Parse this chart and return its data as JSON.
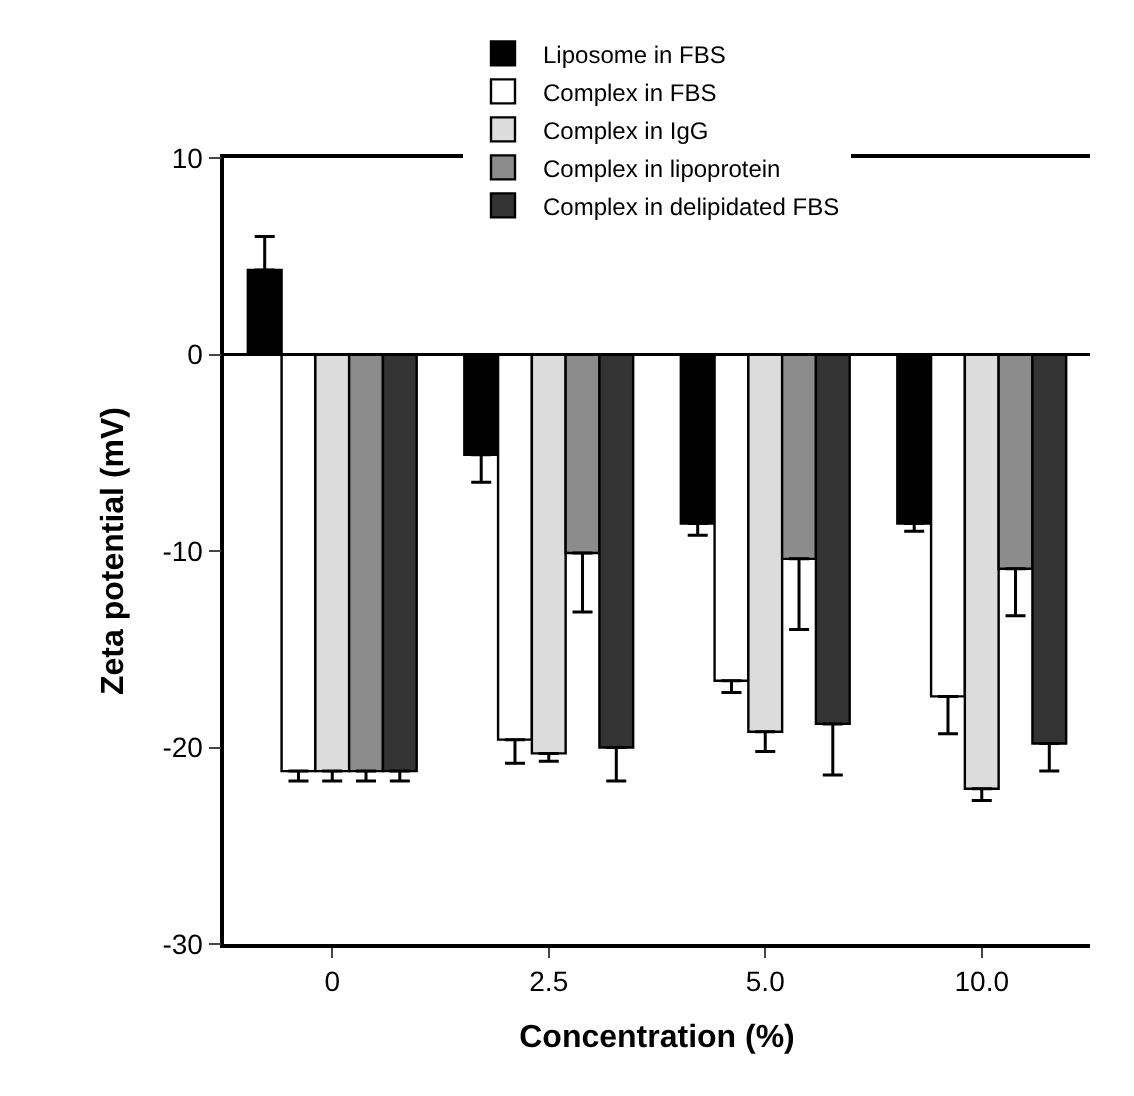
{
  "chart_data": {
    "type": "bar",
    "xlabel": "Concentration (%)",
    "ylabel": "Zeta potential (mV)",
    "categories": [
      "0",
      "2.5",
      "5.0",
      "10.0"
    ],
    "series": [
      {
        "name": "Liposome in FBS",
        "color": "#000000",
        "values": [
          4.3,
          -5.1,
          -8.6,
          -8.6
        ],
        "errors": [
          [
            4.3,
            6.0
          ],
          [
            -6.5,
            -5.1
          ],
          [
            -9.2,
            -8.6
          ],
          [
            -9.0,
            -8.6
          ]
        ]
      },
      {
        "name": "Complex in FBS",
        "color": "#ffffff",
        "values": [
          -21.2,
          -19.6,
          -16.6,
          -17.4
        ],
        "errors": [
          [
            -21.7,
            -21.2
          ],
          [
            -20.8,
            -19.6
          ],
          [
            -17.2,
            -16.6
          ],
          [
            -19.3,
            -17.4
          ]
        ]
      },
      {
        "name": "Complex in IgG",
        "color": "#dcdcdc",
        "values": [
          -21.2,
          -20.3,
          -19.2,
          -22.1
        ],
        "errors": [
          [
            -21.7,
            -21.2
          ],
          [
            -20.7,
            -20.3
          ],
          [
            -20.2,
            -19.2
          ],
          [
            -22.7,
            -22.1
          ]
        ]
      },
      {
        "name": "Complex in lipoprotein",
        "color": "#8c8c8c",
        "values": [
          -21.2,
          -10.1,
          -10.4,
          -10.9
        ],
        "errors": [
          [
            -21.7,
            -21.2
          ],
          [
            -13.1,
            -10.1
          ],
          [
            -14.0,
            -10.4
          ],
          [
            -13.3,
            -10.9
          ]
        ]
      },
      {
        "name": "Complex in delipidated FBS",
        "color": "#333333",
        "values": [
          -21.2,
          -20.0,
          -18.8,
          -19.8
        ],
        "errors": [
          [
            -21.7,
            -21.2
          ],
          [
            -21.7,
            -20.0
          ],
          [
            -21.4,
            -18.8
          ],
          [
            -21.2,
            -19.8
          ]
        ]
      }
    ],
    "ylim": [
      -30,
      10
    ],
    "yticks": [
      10,
      0,
      -10,
      -20,
      -30
    ],
    "ref_lines": [
      {
        "axis": "y",
        "value": 0,
        "color": "#000000"
      }
    ],
    "legend": "top"
  }
}
